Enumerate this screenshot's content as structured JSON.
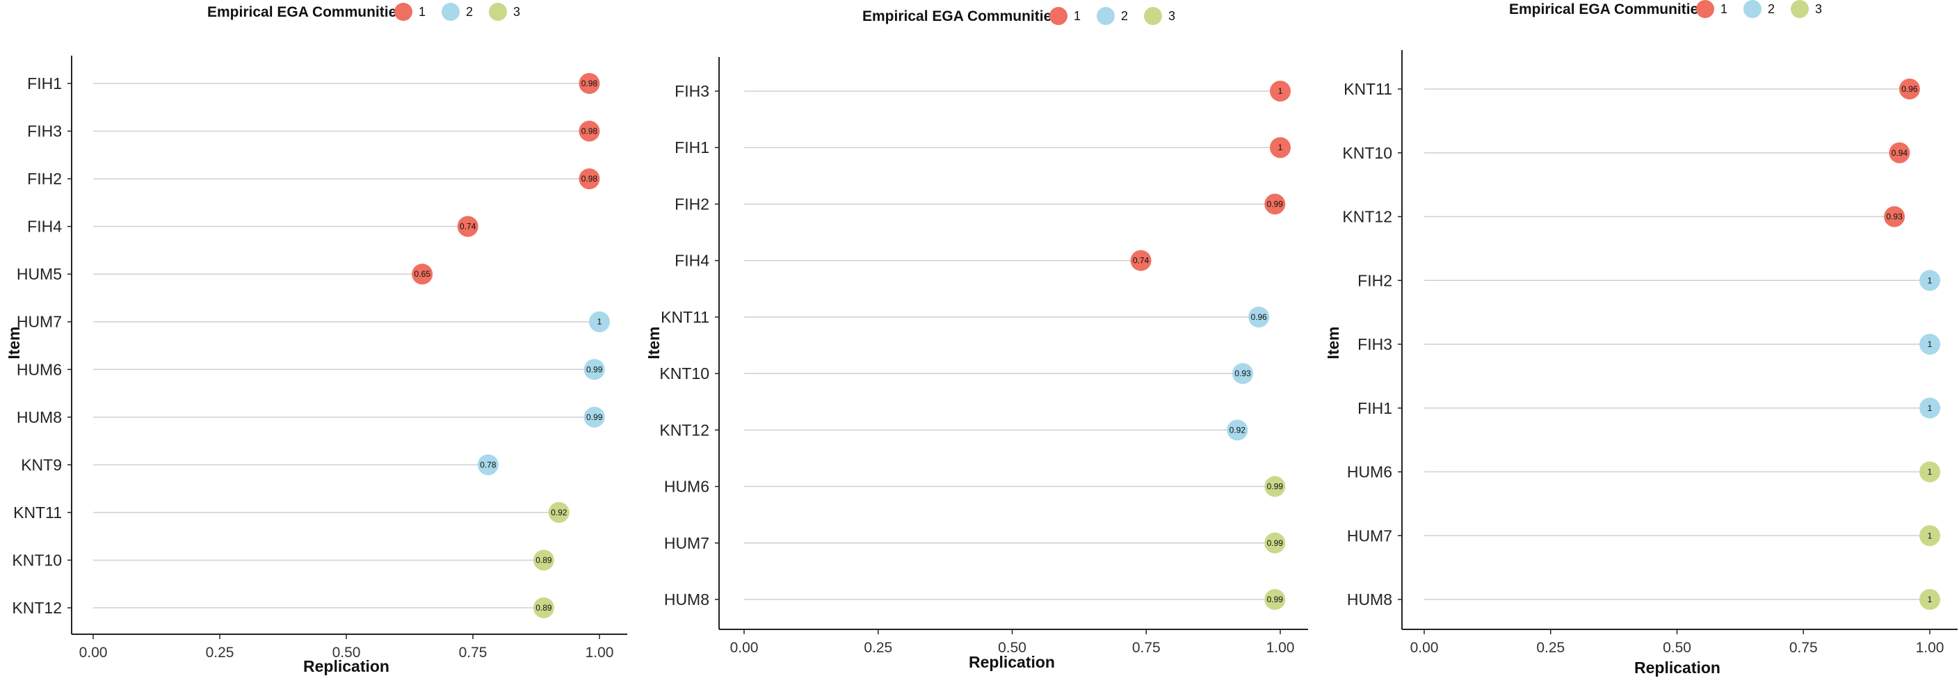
{
  "legend_title": "Empirical EGA Communities",
  "colors": {
    "1": "#ef6f61",
    "2": "#a8d8ea",
    "3": "#c9d98a"
  },
  "chart_data": [
    {
      "type": "lollipop",
      "xlabel": "Replication",
      "ylabel": "Item",
      "xlim": [
        0,
        1
      ],
      "xticks": [
        "0.00",
        "0.25",
        "0.50",
        "0.75",
        "1.00"
      ],
      "legend": {
        "title": "Empirical EGA Communities",
        "entries": [
          "1",
          "2",
          "3"
        ],
        "position": "top"
      },
      "points": [
        {
          "item": "FIH1",
          "value": 0.98,
          "label": "0.98",
          "community": "1"
        },
        {
          "item": "FIH3",
          "value": 0.98,
          "label": "0.98",
          "community": "1"
        },
        {
          "item": "FIH2",
          "value": 0.98,
          "label": "0.98",
          "community": "1"
        },
        {
          "item": "FIH4",
          "value": 0.74,
          "label": "0.74",
          "community": "1"
        },
        {
          "item": "HUM5",
          "value": 0.65,
          "label": "0.65",
          "community": "1"
        },
        {
          "item": "HUM7",
          "value": 1.0,
          "label": "1",
          "community": "2"
        },
        {
          "item": "HUM6",
          "value": 0.99,
          "label": "0.99",
          "community": "2"
        },
        {
          "item": "HUM8",
          "value": 0.99,
          "label": "0.99",
          "community": "2"
        },
        {
          "item": "KNT9",
          "value": 0.78,
          "label": "0.78",
          "community": "2"
        },
        {
          "item": "KNT11",
          "value": 0.92,
          "label": "0.92",
          "community": "3"
        },
        {
          "item": "KNT10",
          "value": 0.89,
          "label": "0.89",
          "community": "3"
        },
        {
          "item": "KNT12",
          "value": 0.89,
          "label": "0.89",
          "community": "3"
        }
      ]
    },
    {
      "type": "lollipop",
      "xlabel": "Replication",
      "ylabel": "Item",
      "xlim": [
        0,
        1
      ],
      "xticks": [
        "0.00",
        "0.25",
        "0.50",
        "0.75",
        "1.00"
      ],
      "legend": {
        "title": "Empirical EGA Communities",
        "entries": [
          "1",
          "2",
          "3"
        ],
        "position": "top"
      },
      "points": [
        {
          "item": "FIH3",
          "value": 1.0,
          "label": "1",
          "community": "1"
        },
        {
          "item": "FIH1",
          "value": 1.0,
          "label": "1",
          "community": "1"
        },
        {
          "item": "FIH2",
          "value": 0.99,
          "label": "0.99",
          "community": "1"
        },
        {
          "item": "FIH4",
          "value": 0.74,
          "label": "0.74",
          "community": "1"
        },
        {
          "item": "KNT11",
          "value": 0.96,
          "label": "0.96",
          "community": "2"
        },
        {
          "item": "KNT10",
          "value": 0.93,
          "label": "0.93",
          "community": "2"
        },
        {
          "item": "KNT12",
          "value": 0.92,
          "label": "0.92",
          "community": "2"
        },
        {
          "item": "HUM6",
          "value": 0.99,
          "label": "0.99",
          "community": "3"
        },
        {
          "item": "HUM7",
          "value": 0.99,
          "label": "0.99",
          "community": "3"
        },
        {
          "item": "HUM8",
          "value": 0.99,
          "label": "0.99",
          "community": "3"
        }
      ]
    },
    {
      "type": "lollipop",
      "xlabel": "Replication",
      "ylabel": "Item",
      "xlim": [
        0,
        1
      ],
      "xticks": [
        "0.00",
        "0.25",
        "0.50",
        "0.75",
        "1.00"
      ],
      "legend": {
        "title": "Empirical EGA Communities",
        "entries": [
          "1",
          "2",
          "3"
        ],
        "position": "top"
      },
      "points": [
        {
          "item": "KNT11",
          "value": 0.96,
          "label": "0.96",
          "community": "1"
        },
        {
          "item": "KNT10",
          "value": 0.94,
          "label": "0.94",
          "community": "1"
        },
        {
          "item": "KNT12",
          "value": 0.93,
          "label": "0.93",
          "community": "1"
        },
        {
          "item": "FIH2",
          "value": 1.0,
          "label": "1",
          "community": "2"
        },
        {
          "item": "FIH3",
          "value": 1.0,
          "label": "1",
          "community": "2"
        },
        {
          "item": "FIH1",
          "value": 1.0,
          "label": "1",
          "community": "2"
        },
        {
          "item": "HUM6",
          "value": 1.0,
          "label": "1",
          "community": "3"
        },
        {
          "item": "HUM7",
          "value": 1.0,
          "label": "1",
          "community": "3"
        },
        {
          "item": "HUM8",
          "value": 1.0,
          "label": "1",
          "community": "3"
        }
      ]
    }
  ]
}
